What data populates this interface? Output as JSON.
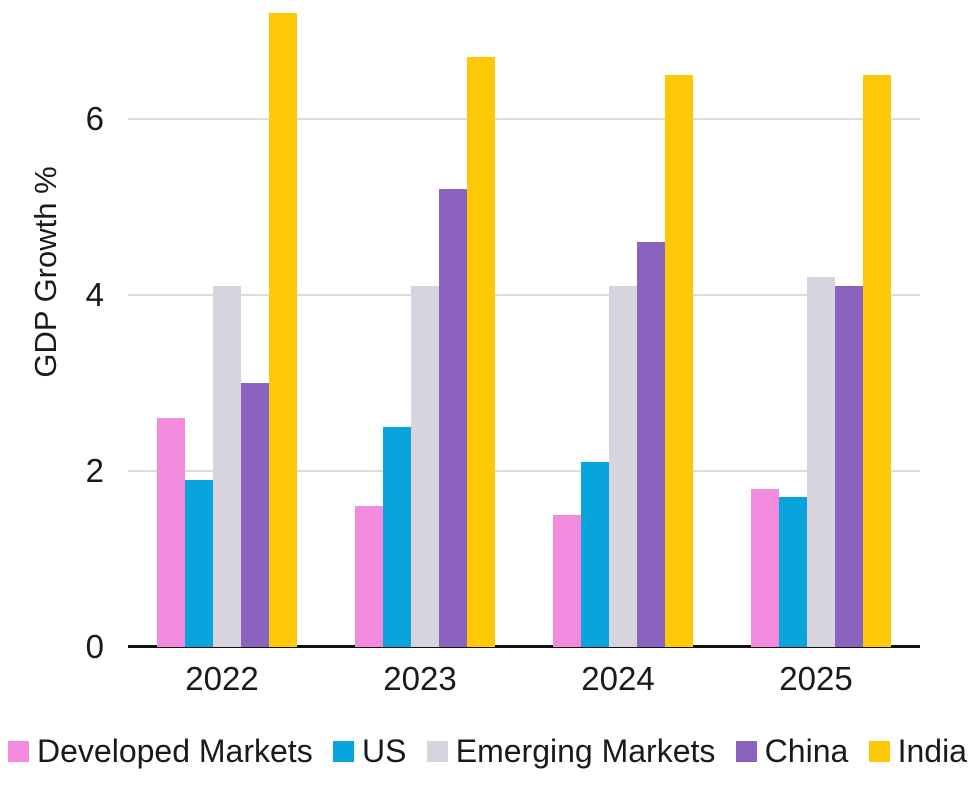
{
  "chart_data": {
    "type": "bar",
    "title": "",
    "xlabel": "",
    "ylabel": "GDP Growth %",
    "categories": [
      "2022",
      "2023",
      "2024",
      "2025"
    ],
    "series": [
      {
        "name": "Developed Markets",
        "color": "#F28BDE",
        "values": [
          2.6,
          1.6,
          1.5,
          1.8
        ]
      },
      {
        "name": "US",
        "color": "#09A4DC",
        "values": [
          1.9,
          2.5,
          2.1,
          1.7
        ]
      },
      {
        "name": "Emerging Markets",
        "color": "#D7D4DD",
        "values": [
          4.1,
          4.1,
          4.1,
          4.2
        ]
      },
      {
        "name": "China",
        "color": "#8A63BE",
        "values": [
          3.0,
          5.2,
          4.6,
          4.1
        ]
      },
      {
        "name": "India",
        "color": "#FFC806",
        "values": [
          7.2,
          6.7,
          6.5,
          6.5
        ]
      }
    ],
    "yticks": [
      0,
      2,
      4,
      6
    ],
    "ylim": [
      0,
      7.35
    ],
    "grid": true,
    "legend_position": "bottom"
  },
  "styles": {
    "gridline_color": "#dcdcdc",
    "axis_line_color": "#111111",
    "text_color": "#1a1a1a",
    "background": "#ffffff"
  }
}
